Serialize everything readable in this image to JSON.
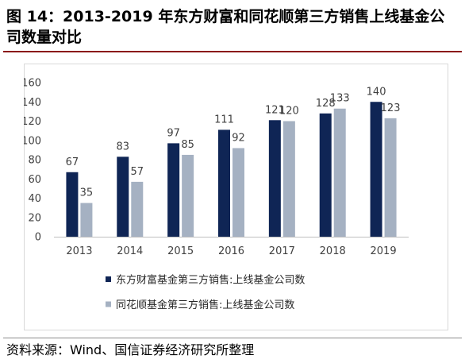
{
  "chart_data": {
    "type": "bar",
    "title": "图 14：2013-2019 年东方财富和同花顺第三方销售上线基金公司数量对比",
    "categories": [
      "2013",
      "2014",
      "2015",
      "2016",
      "2017",
      "2018",
      "2019"
    ],
    "series": [
      {
        "name": "东方财富基金第三方销售:上线基金公司数",
        "values": [
          67,
          83,
          97,
          111,
          121,
          128,
          140
        ],
        "color": "#0f2555"
      },
      {
        "name": "同花顺基金第三方销售:上线基金公司数",
        "values": [
          35,
          57,
          85,
          92,
          120,
          133,
          123
        ],
        "color": "#a5b1c2"
      }
    ],
    "ylim": [
      0,
      160
    ],
    "yticks": [
      0,
      20,
      40,
      60,
      80,
      100,
      120,
      140,
      160
    ],
    "grid": false,
    "legend": "bottom"
  },
  "source": "资料来源：Wind、国信证券经济研究所整理"
}
